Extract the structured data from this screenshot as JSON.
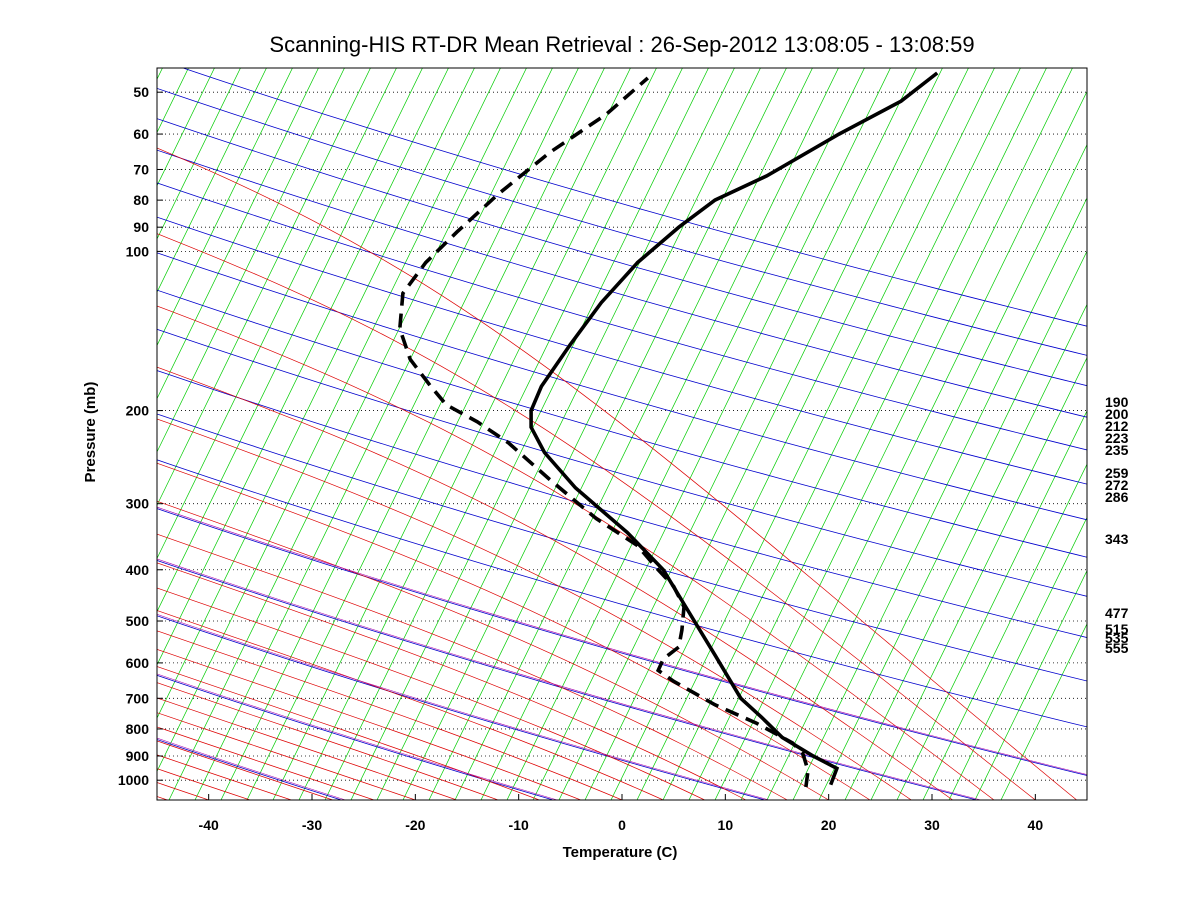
{
  "chart_data": {
    "type": "line",
    "title": "Scanning-HIS RT-DR Mean Retrieval : 26-Sep-2012 13:08:05 - 13:08:59",
    "xlabel": "Temperature (C)",
    "ylabel": "Pressure (mb)",
    "xlim": [
      -45,
      45
    ],
    "ylim": [
      1090,
      45
    ],
    "y_scale": "log",
    "x_ticks": [
      "-40",
      "-30",
      "-20",
      "-10",
      "0",
      "10",
      "20",
      "30",
      "40"
    ],
    "y_ticks": [
      "50",
      "60",
      "70",
      "80",
      "90",
      "100",
      "200",
      "300",
      "400",
      "500",
      "600",
      "700",
      "800",
      "900",
      "1000"
    ],
    "grid": "horizontal dotted lines at pressure ticks",
    "background_lines": {
      "dry_adiabats_color": "#0000cc",
      "moist_adiabats_color": "#dd0000",
      "mixing_ratio_color": "#00cc00",
      "overlay_color": "#aa00aa"
    },
    "right_labels": [
      "190",
      "200",
      "212",
      "223",
      "235",
      "259",
      "272",
      "286",
      "343",
      "477",
      "515",
      "535",
      "555"
    ],
    "series": [
      {
        "style": "solid",
        "color": "#000000",
        "x": [
          20.2,
          20.8,
          18.5,
          15.5,
          13.5,
          11.5,
          9.0,
          7.0,
          4.0,
          0.5,
          -4.5,
          -7.5,
          -8.8,
          -8.8,
          -7.8,
          -5.0,
          -2.0,
          1.5,
          5.5,
          9.0,
          14.0,
          21.0,
          27.0,
          30.5
        ],
        "y": [
          1020,
          950,
          900,
          830,
          760,
          700,
          580,
          500,
          400,
          340,
          280,
          240,
          215,
          200,
          180,
          150,
          125,
          105,
          90,
          80,
          72,
          60,
          52,
          46
        ]
      },
      {
        "style": "dashed",
        "color": "#000000",
        "x": [
          17.8,
          18.0,
          17.8,
          17.5,
          16.5,
          13.0,
          9.0,
          5.0,
          3.5,
          4.0,
          5.5,
          5.8,
          6.0,
          5.0,
          3.5,
          1.5,
          -2.5,
          -7.0,
          -11.0,
          -14.0,
          -17.0,
          -18.5,
          -20.5,
          -21.5,
          -21.2,
          -19.0,
          -16.0,
          -12.0,
          -7.0,
          -1.5,
          2.5
        ],
        "y": [
          1030,
          960,
          930,
          890,
          850,
          780,
          720,
          650,
          620,
          590,
          560,
          520,
          470,
          430,
          400,
          360,
          320,
          270,
          230,
          210,
          195,
          180,
          160,
          140,
          120,
          105,
          92,
          78,
          65,
          55,
          47
        ]
      }
    ]
  }
}
